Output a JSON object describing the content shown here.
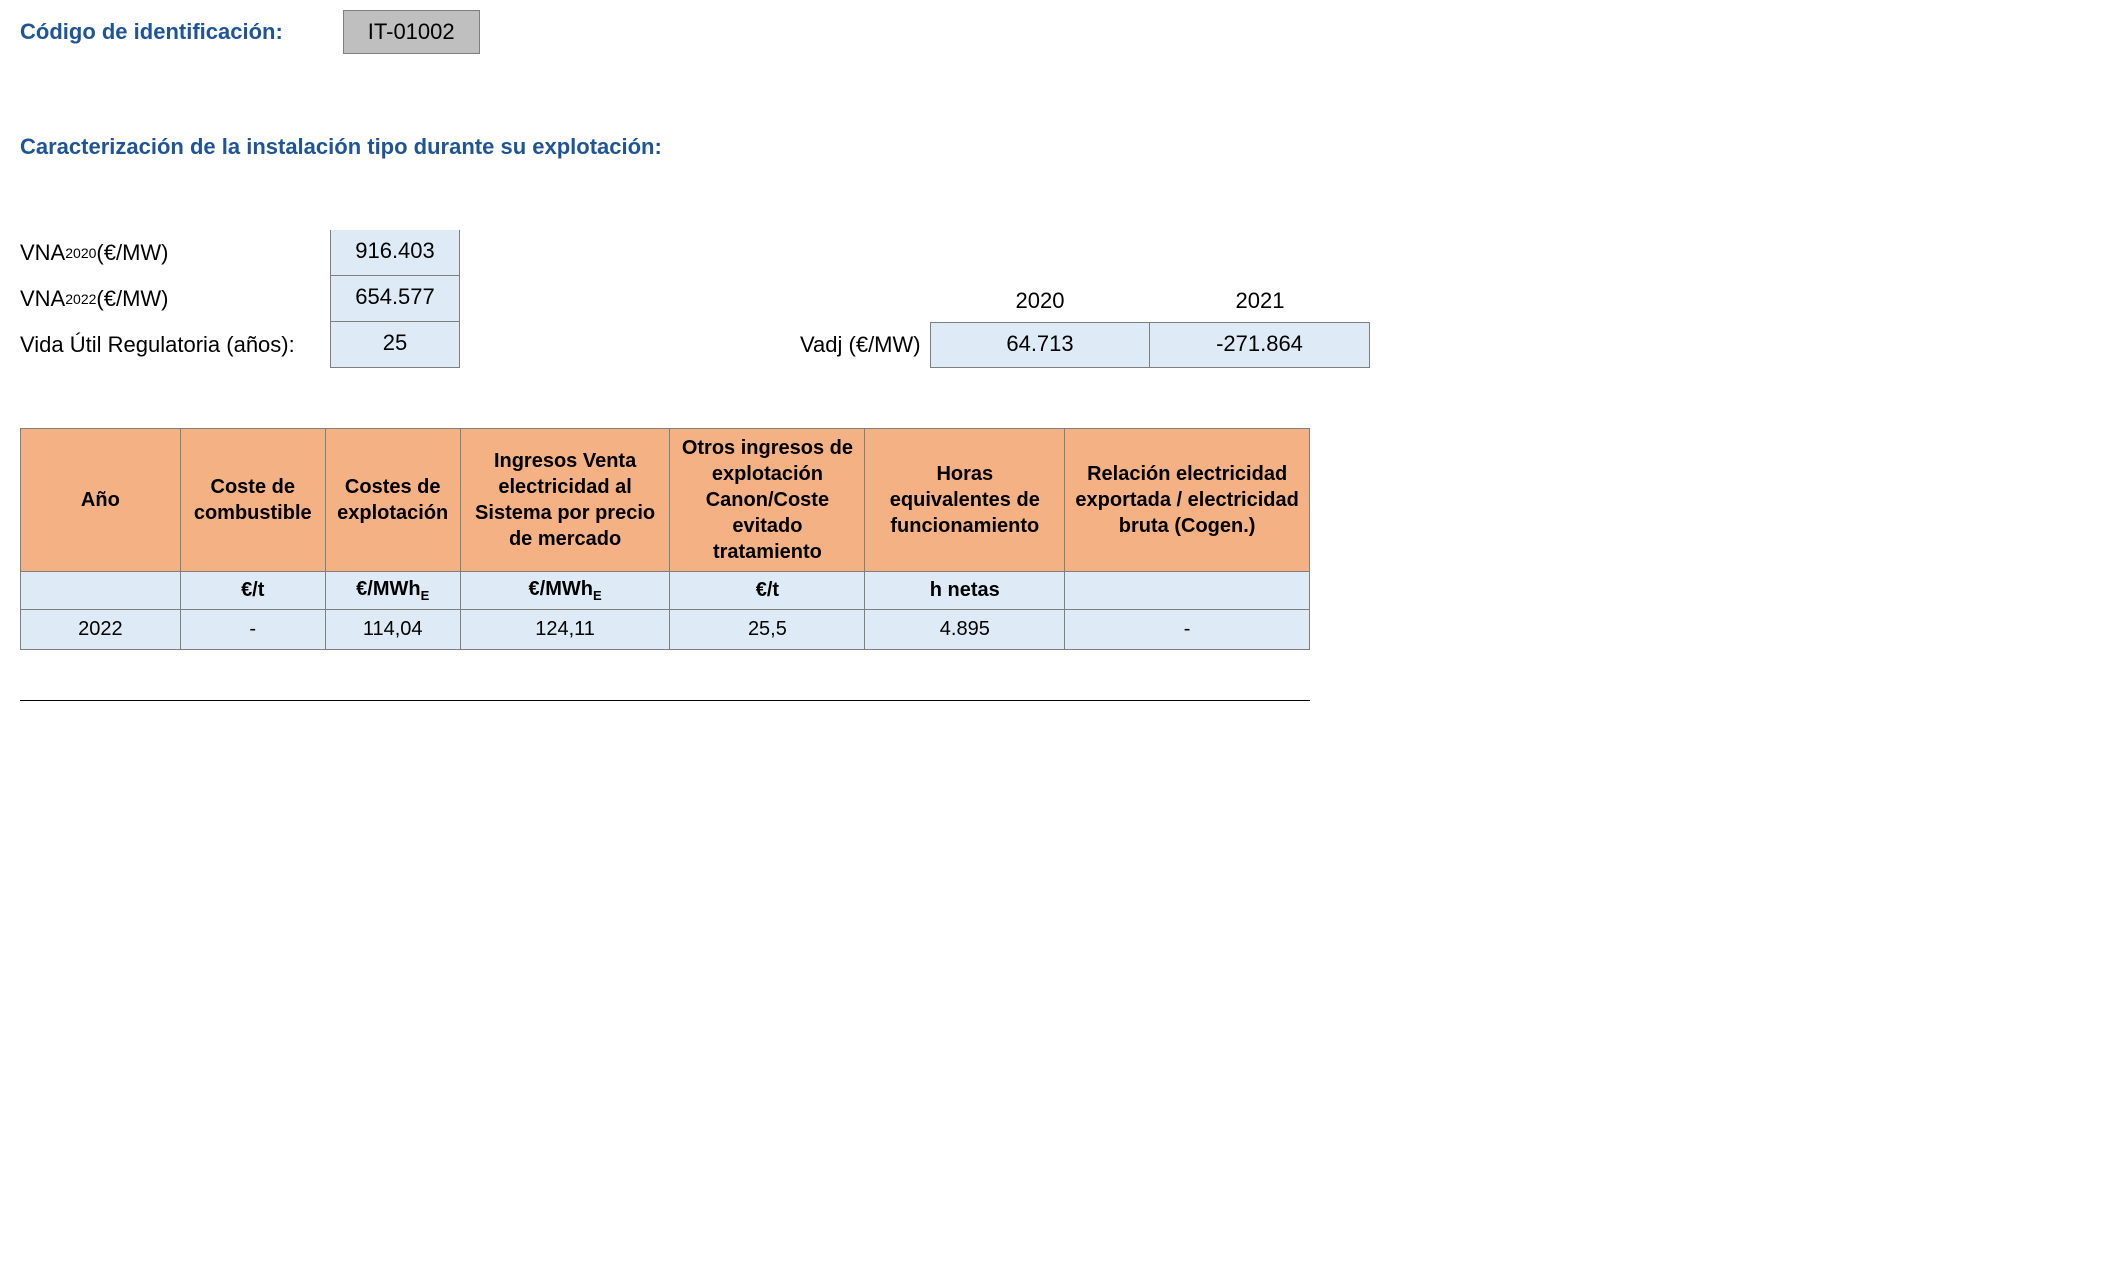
{
  "header": {
    "code_label": "Código de identificación:",
    "code_value": "IT-01002"
  },
  "section_title": "Caracterización de la instalación tipo durante su explotación:",
  "left_params": {
    "vna2020_label_html": "VNA<span class=\"sub\">2020</span> (€/MW)",
    "vna2020_value": "916.403",
    "vna2022_label_html": "VNA<span class=\"sub\">2022</span> (€/MW)",
    "vna2022_value": "654.577",
    "vida_label": "Vida Útil Regulatoria (años):",
    "vida_value": "25"
  },
  "right_params": {
    "year1": "2020",
    "year2": "2021",
    "vadj_label": "Vadj (€/MW)",
    "vadj_2020": "64.713",
    "vadj_2021": "-271.864"
  },
  "table": {
    "headers": {
      "c0": "Año",
      "c1": "Coste de combustible",
      "c2": "Costes de explotación",
      "c3": "Ingresos Venta electricidad al Sistema por precio de mercado",
      "c4": "Otros ingresos de explotación Canon/Coste evitado tratamiento",
      "c5": "Horas equivalentes de funcionamiento",
      "c6": "Relación electricidad exportada / electricidad bruta (Cogen.)"
    },
    "units": {
      "c0": "",
      "c1": "€/t",
      "c2_html": "€/MWh<span class=\"subE\">E</span>",
      "c3_html": "€/MWh<span class=\"subE\">E</span>",
      "c4": "€/t",
      "c5": "h netas",
      "c6": ""
    },
    "rows": [
      {
        "c0": "2022",
        "c1": "-",
        "c2": "114,04",
        "c3": "124,11",
        "c4": "25,5",
        "c5": "4.895",
        "c6": "-"
      }
    ]
  },
  "colors": {
    "blue_label": "#1f5597",
    "header_bg": "#f4b183",
    "light_blue_bg": "#deebf7",
    "gray_bg": "#bfbfbf",
    "border": "#7f7f7f"
  }
}
